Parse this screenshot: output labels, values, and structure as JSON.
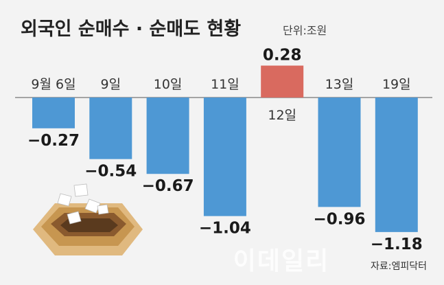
{
  "title": "외국인 순매수 · 순매도 현황",
  "unit": "단위:조원",
  "source": "자료:엠피닥터",
  "watermark": "이데일리",
  "colors": {
    "negative": "#4e98d4",
    "positive": "#d96a5f"
  },
  "chart_data": {
    "type": "bar",
    "categories": [
      "9월 6일",
      "9일",
      "10일",
      "11일",
      "12일",
      "13일",
      "19일"
    ],
    "values": [
      -0.27,
      -0.54,
      -0.67,
      -1.04,
      0.28,
      -0.96,
      -1.18
    ],
    "value_labels": [
      "−0.27",
      "−0.54",
      "−0.67",
      "−1.04",
      "0.28",
      "−0.96",
      "−1.18"
    ],
    "title": "외국인 순매수 · 순매도 현황",
    "ylabel": "단위:조원",
    "grid": false
  }
}
